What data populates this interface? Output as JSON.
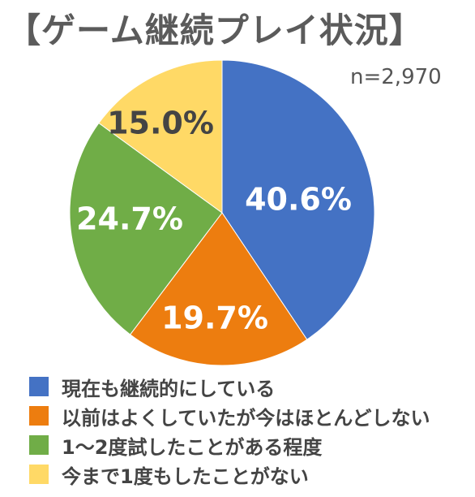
{
  "title": "【ゲーム継続プレイ状況】",
  "sample_size": "n=2,970",
  "chart_data": {
    "type": "pie",
    "title": "【ゲーム継続プレイ状況】",
    "categories": [
      "現在も継続的にしている",
      "以前はよくしていたが今はほとんどしない",
      "1～2度試したことがある程度",
      "今まで1度もしたことがない"
    ],
    "values": [
      40.6,
      19.7,
      24.7,
      15.0
    ],
    "value_labels": [
      "40.6%",
      "19.7%",
      "24.7%",
      "15.0%"
    ],
    "colors": [
      "#4472c4",
      "#ed7d0f",
      "#70ad47",
      "#ffd966"
    ],
    "label_colors": [
      "#ffffff",
      "#ffffff",
      "#ffffff",
      "#444444"
    ],
    "legend_position": "bottom"
  }
}
